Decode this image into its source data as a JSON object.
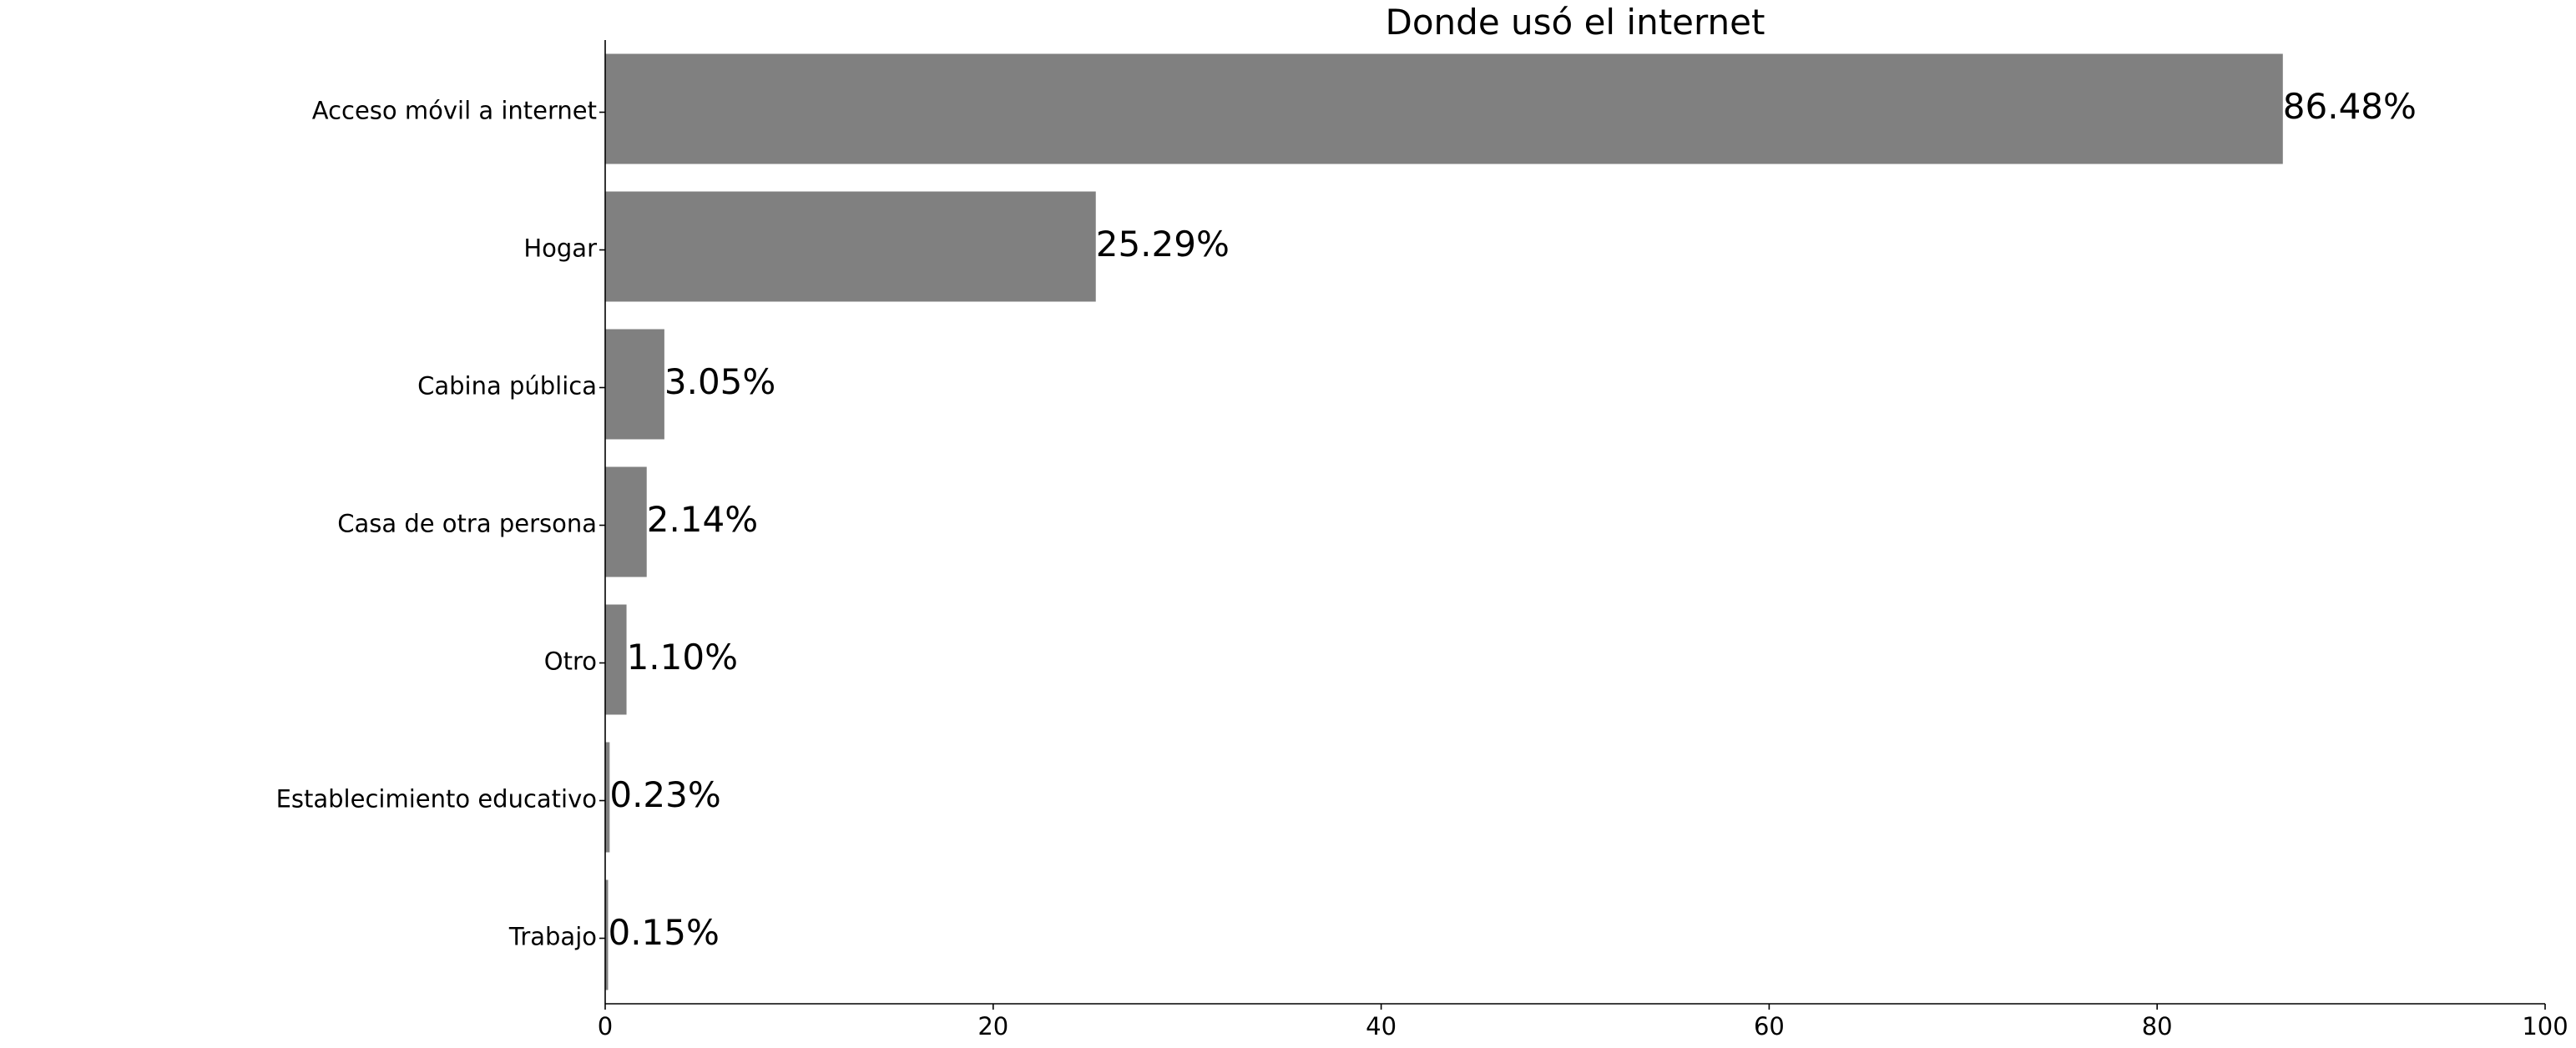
{
  "chart_data": {
    "type": "bar",
    "orientation": "horizontal",
    "title": "Donde usó el internet",
    "xlabel": "",
    "ylabel": "",
    "categories": [
      "Acceso móvil a internet",
      "Hogar",
      "Cabina pública",
      "Casa de otra persona",
      "Otro",
      "Establecimiento educativo",
      "Trabajo"
    ],
    "values": [
      86.48,
      25.29,
      3.05,
      2.14,
      1.1,
      0.23,
      0.15
    ],
    "value_labels": [
      "86.48%",
      "25.29%",
      "3.05%",
      "2.14%",
      "1.10%",
      "0.23%",
      "0.15%"
    ],
    "xlim": [
      0,
      100
    ],
    "xticks": [
      0,
      20,
      40,
      60,
      80,
      100
    ],
    "bar_color": "#808080",
    "grid": false,
    "legend": "none"
  }
}
